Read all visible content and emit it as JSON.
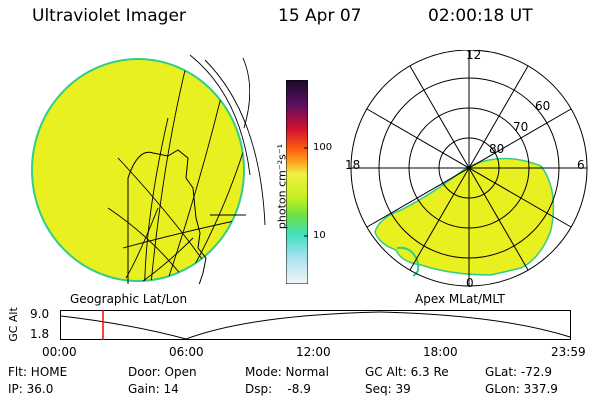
{
  "header": {
    "instrument": "Ultraviolet Imager",
    "date": "15 Apr 07",
    "time": "02:00:18 UT"
  },
  "colorbar": {
    "unit_label": "photon cm⁻²s⁻¹",
    "tick_labels": [
      "100",
      "10"
    ]
  },
  "polar_plot": {
    "mlt_labels": [
      "12",
      "18",
      "6",
      "0"
    ],
    "lat_labels": [
      "60",
      "70",
      "80"
    ]
  },
  "panels": {
    "left_label": "Geographic Lat/Lon",
    "right_label": "Apex MLat/MLT"
  },
  "altitude": {
    "axis_label": "GC Alt",
    "y_ticks": [
      "9.0",
      "1.8"
    ],
    "x_ticks": [
      "00:00",
      "06:00",
      "12:00",
      "18:00",
      "23:59"
    ]
  },
  "status": {
    "flt": "Flt: HOME",
    "ip": "IP: 36.0",
    "door": "Door: Open",
    "gain": "Gain: 14",
    "mode": "Mode: Normal",
    "dsp": "Dsp:    -8.9",
    "gcalt": "GC Alt: 6.3 Re",
    "seq": "Seq: 39",
    "glat": "GLat: -72.9",
    "glon": "GLon: 337.9"
  },
  "colors": {
    "fill": "#e8f020",
    "edge": "#33cc88",
    "marker": "#ff0000"
  }
}
